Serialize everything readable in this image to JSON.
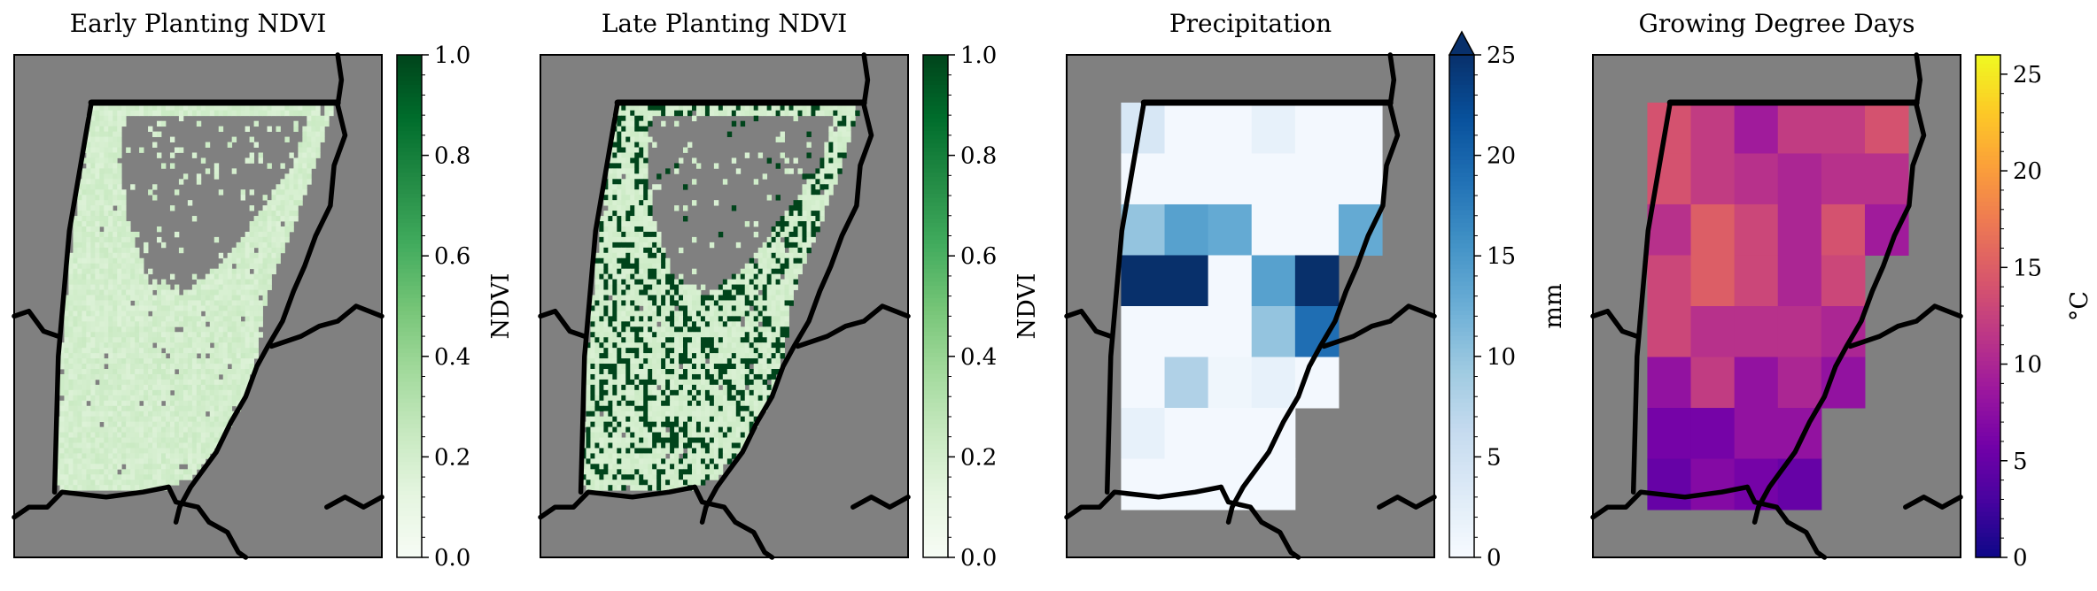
{
  "figure": {
    "panels": [
      {
        "title": "Early Planting NDVI",
        "colorbar": {
          "label": "NDVI",
          "ticks": [
            "0.0",
            "0.2",
            "0.4",
            "0.6",
            "0.8",
            "1.0"
          ],
          "min": 0,
          "max": 1,
          "cmap": "Greens",
          "extend": "none"
        }
      },
      {
        "title": "Late Planting NDVI",
        "colorbar": {
          "label": "NDVI",
          "ticks": [
            "0.0",
            "0.2",
            "0.4",
            "0.6",
            "0.8",
            "1.0"
          ],
          "min": 0,
          "max": 1,
          "cmap": "Greens",
          "extend": "none"
        }
      },
      {
        "title": "Precipitation",
        "colorbar": {
          "label": "mm",
          "ticks": [
            "0",
            "5",
            "10",
            "15",
            "20",
            "25"
          ],
          "min": 0,
          "max": 25,
          "cmap": "Blues",
          "extend": "max"
        }
      },
      {
        "title": "Growing Degree Days",
        "colorbar": {
          "label": "°C",
          "ticks": [
            "0",
            "5",
            "10",
            "15",
            "20",
            "25"
          ],
          "min": 0,
          "max": 26,
          "cmap": "plasma",
          "extend": "none"
        }
      }
    ]
  },
  "chart_data": [
    {
      "type": "heatmap",
      "title": "Early Planting NDVI",
      "colorbar_label": "NDVI",
      "vmin": 0,
      "vmax": 1,
      "typical_value": 0.2,
      "note": "fine-resolution map; nearly all pixels low NDVI (~0.15-0.25)"
    },
    {
      "type": "heatmap",
      "title": "Late Planting NDVI",
      "colorbar_label": "NDVI",
      "vmin": 0,
      "vmax": 1,
      "typical_values": [
        0.2,
        1.0
      ],
      "note": "fine-resolution map; mix of low (~0.2) and high (~1.0) NDVI pixels"
    },
    {
      "type": "heatmap",
      "title": "Precipitation",
      "colorbar_label": "mm",
      "vmin": 0,
      "vmax": 25,
      "colormap": "Blues",
      "grid": [
        [
          4,
          0.5,
          0.5,
          2,
          0.5,
          0.5
        ],
        [
          0.5,
          0.5,
          0.5,
          0.5,
          0.5,
          0.5
        ],
        [
          10,
          14,
          13,
          0.5,
          0.5,
          13
        ],
        [
          25,
          25,
          0.5,
          14,
          25,
          null
        ],
        [
          0.5,
          0.5,
          0.5,
          10,
          19,
          null
        ],
        [
          0.5,
          8,
          1,
          2,
          0.5,
          null
        ],
        [
          2,
          0.5,
          0.5,
          0.5,
          null,
          null
        ],
        [
          0.5,
          0.5,
          0.5,
          0.5,
          null,
          null
        ]
      ]
    },
    {
      "type": "heatmap",
      "title": "Growing Degree Days",
      "colorbar_label": "°C",
      "vmin": 0,
      "vmax": 26,
      "colormap": "plasma",
      "grid": [
        [
          14,
          12,
          9,
          12,
          12,
          14
        ],
        [
          14,
          12,
          11,
          10,
          11,
          11
        ],
        [
          11,
          15,
          13,
          10,
          14,
          9
        ],
        [
          13,
          15,
          13,
          10,
          13,
          null
        ],
        [
          13,
          11,
          11,
          11,
          10,
          null
        ],
        [
          8,
          12,
          8,
          10,
          8,
          null
        ],
        [
          6,
          6,
          8,
          8,
          null,
          null
        ],
        [
          5,
          7,
          6,
          5,
          null,
          null
        ]
      ]
    }
  ]
}
